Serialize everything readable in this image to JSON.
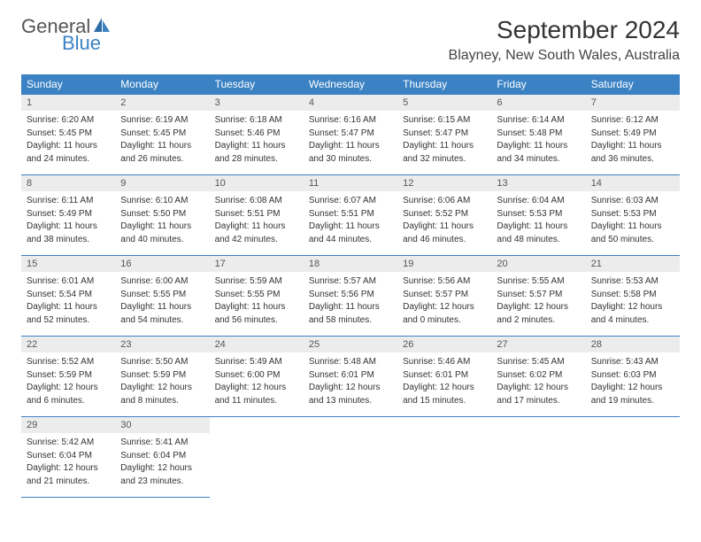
{
  "logo": {
    "general": "General",
    "blue": "Blue"
  },
  "title": "September 2024",
  "location": "Blayney, New South Wales, Australia",
  "colors": {
    "header_bg": "#3b82c4",
    "header_text": "#ffffff",
    "daynum_bg": "#ececec",
    "border": "#3b82c4",
    "logo_blue": "#3b82c4",
    "logo_gray": "#555555"
  },
  "weekdays": [
    "Sunday",
    "Monday",
    "Tuesday",
    "Wednesday",
    "Thursday",
    "Friday",
    "Saturday"
  ],
  "weeks": [
    {
      "nums": [
        "1",
        "2",
        "3",
        "4",
        "5",
        "6",
        "7"
      ],
      "cells": [
        {
          "sr": "Sunrise: 6:20 AM",
          "ss": "Sunset: 5:45 PM",
          "dl1": "Daylight: 11 hours",
          "dl2": "and 24 minutes."
        },
        {
          "sr": "Sunrise: 6:19 AM",
          "ss": "Sunset: 5:45 PM",
          "dl1": "Daylight: 11 hours",
          "dl2": "and 26 minutes."
        },
        {
          "sr": "Sunrise: 6:18 AM",
          "ss": "Sunset: 5:46 PM",
          "dl1": "Daylight: 11 hours",
          "dl2": "and 28 minutes."
        },
        {
          "sr": "Sunrise: 6:16 AM",
          "ss": "Sunset: 5:47 PM",
          "dl1": "Daylight: 11 hours",
          "dl2": "and 30 minutes."
        },
        {
          "sr": "Sunrise: 6:15 AM",
          "ss": "Sunset: 5:47 PM",
          "dl1": "Daylight: 11 hours",
          "dl2": "and 32 minutes."
        },
        {
          "sr": "Sunrise: 6:14 AM",
          "ss": "Sunset: 5:48 PM",
          "dl1": "Daylight: 11 hours",
          "dl2": "and 34 minutes."
        },
        {
          "sr": "Sunrise: 6:12 AM",
          "ss": "Sunset: 5:49 PM",
          "dl1": "Daylight: 11 hours",
          "dl2": "and 36 minutes."
        }
      ]
    },
    {
      "nums": [
        "8",
        "9",
        "10",
        "11",
        "12",
        "13",
        "14"
      ],
      "cells": [
        {
          "sr": "Sunrise: 6:11 AM",
          "ss": "Sunset: 5:49 PM",
          "dl1": "Daylight: 11 hours",
          "dl2": "and 38 minutes."
        },
        {
          "sr": "Sunrise: 6:10 AM",
          "ss": "Sunset: 5:50 PM",
          "dl1": "Daylight: 11 hours",
          "dl2": "and 40 minutes."
        },
        {
          "sr": "Sunrise: 6:08 AM",
          "ss": "Sunset: 5:51 PM",
          "dl1": "Daylight: 11 hours",
          "dl2": "and 42 minutes."
        },
        {
          "sr": "Sunrise: 6:07 AM",
          "ss": "Sunset: 5:51 PM",
          "dl1": "Daylight: 11 hours",
          "dl2": "and 44 minutes."
        },
        {
          "sr": "Sunrise: 6:06 AM",
          "ss": "Sunset: 5:52 PM",
          "dl1": "Daylight: 11 hours",
          "dl2": "and 46 minutes."
        },
        {
          "sr": "Sunrise: 6:04 AM",
          "ss": "Sunset: 5:53 PM",
          "dl1": "Daylight: 11 hours",
          "dl2": "and 48 minutes."
        },
        {
          "sr": "Sunrise: 6:03 AM",
          "ss": "Sunset: 5:53 PM",
          "dl1": "Daylight: 11 hours",
          "dl2": "and 50 minutes."
        }
      ]
    },
    {
      "nums": [
        "15",
        "16",
        "17",
        "18",
        "19",
        "20",
        "21"
      ],
      "cells": [
        {
          "sr": "Sunrise: 6:01 AM",
          "ss": "Sunset: 5:54 PM",
          "dl1": "Daylight: 11 hours",
          "dl2": "and 52 minutes."
        },
        {
          "sr": "Sunrise: 6:00 AM",
          "ss": "Sunset: 5:55 PM",
          "dl1": "Daylight: 11 hours",
          "dl2": "and 54 minutes."
        },
        {
          "sr": "Sunrise: 5:59 AM",
          "ss": "Sunset: 5:55 PM",
          "dl1": "Daylight: 11 hours",
          "dl2": "and 56 minutes."
        },
        {
          "sr": "Sunrise: 5:57 AM",
          "ss": "Sunset: 5:56 PM",
          "dl1": "Daylight: 11 hours",
          "dl2": "and 58 minutes."
        },
        {
          "sr": "Sunrise: 5:56 AM",
          "ss": "Sunset: 5:57 PM",
          "dl1": "Daylight: 12 hours",
          "dl2": "and 0 minutes."
        },
        {
          "sr": "Sunrise: 5:55 AM",
          "ss": "Sunset: 5:57 PM",
          "dl1": "Daylight: 12 hours",
          "dl2": "and 2 minutes."
        },
        {
          "sr": "Sunrise: 5:53 AM",
          "ss": "Sunset: 5:58 PM",
          "dl1": "Daylight: 12 hours",
          "dl2": "and 4 minutes."
        }
      ]
    },
    {
      "nums": [
        "22",
        "23",
        "24",
        "25",
        "26",
        "27",
        "28"
      ],
      "cells": [
        {
          "sr": "Sunrise: 5:52 AM",
          "ss": "Sunset: 5:59 PM",
          "dl1": "Daylight: 12 hours",
          "dl2": "and 6 minutes."
        },
        {
          "sr": "Sunrise: 5:50 AM",
          "ss": "Sunset: 5:59 PM",
          "dl1": "Daylight: 12 hours",
          "dl2": "and 8 minutes."
        },
        {
          "sr": "Sunrise: 5:49 AM",
          "ss": "Sunset: 6:00 PM",
          "dl1": "Daylight: 12 hours",
          "dl2": "and 11 minutes."
        },
        {
          "sr": "Sunrise: 5:48 AM",
          "ss": "Sunset: 6:01 PM",
          "dl1": "Daylight: 12 hours",
          "dl2": "and 13 minutes."
        },
        {
          "sr": "Sunrise: 5:46 AM",
          "ss": "Sunset: 6:01 PM",
          "dl1": "Daylight: 12 hours",
          "dl2": "and 15 minutes."
        },
        {
          "sr": "Sunrise: 5:45 AM",
          "ss": "Sunset: 6:02 PM",
          "dl1": "Daylight: 12 hours",
          "dl2": "and 17 minutes."
        },
        {
          "sr": "Sunrise: 5:43 AM",
          "ss": "Sunset: 6:03 PM",
          "dl1": "Daylight: 12 hours",
          "dl2": "and 19 minutes."
        }
      ]
    },
    {
      "nums": [
        "29",
        "30",
        "",
        "",
        "",
        "",
        ""
      ],
      "cells": [
        {
          "sr": "Sunrise: 5:42 AM",
          "ss": "Sunset: 6:04 PM",
          "dl1": "Daylight: 12 hours",
          "dl2": "and 21 minutes."
        },
        {
          "sr": "Sunrise: 5:41 AM",
          "ss": "Sunset: 6:04 PM",
          "dl1": "Daylight: 12 hours",
          "dl2": "and 23 minutes."
        },
        null,
        null,
        null,
        null,
        null
      ]
    }
  ]
}
